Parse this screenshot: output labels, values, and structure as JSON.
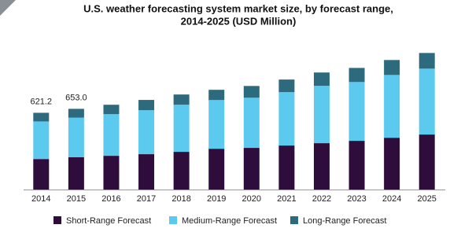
{
  "chart_data": {
    "type": "stacked_bar",
    "title": "U.S. weather forecasting system market size, by forecast range,",
    "subtitle": "2014-2025 (USD Million)",
    "categories": [
      "2014",
      "2015",
      "2016",
      "2017",
      "2018",
      "2019",
      "2020",
      "2021",
      "2022",
      "2023",
      "2024",
      "2025"
    ],
    "series": [
      {
        "name": "Short-Range Forecast",
        "color": "#2e0d3d",
        "values": [
          247,
          262,
          273,
          286,
          305,
          330,
          337,
          356,
          375,
          394,
          419,
          445
        ]
      },
      {
        "name": "Medium-Range Forecast",
        "color": "#5cc9ef",
        "values": [
          304,
          320,
          337,
          356,
          381,
          394,
          406,
          432,
          464,
          476,
          508,
          533
        ]
      },
      {
        "name": "Long-Range Forecast",
        "color": "#2d6a7e",
        "values": [
          70,
          71,
          76,
          83,
          83,
          83,
          95,
          102,
          108,
          114,
          121,
          127
        ]
      }
    ],
    "total_labels": [
      {
        "value": 621.2,
        "label": "621.2"
      },
      {
        "value": 653,
        "label": "653.0"
      }
    ],
    "ylim": [
      0,
      1400
    ],
    "legend": "bottom"
  }
}
